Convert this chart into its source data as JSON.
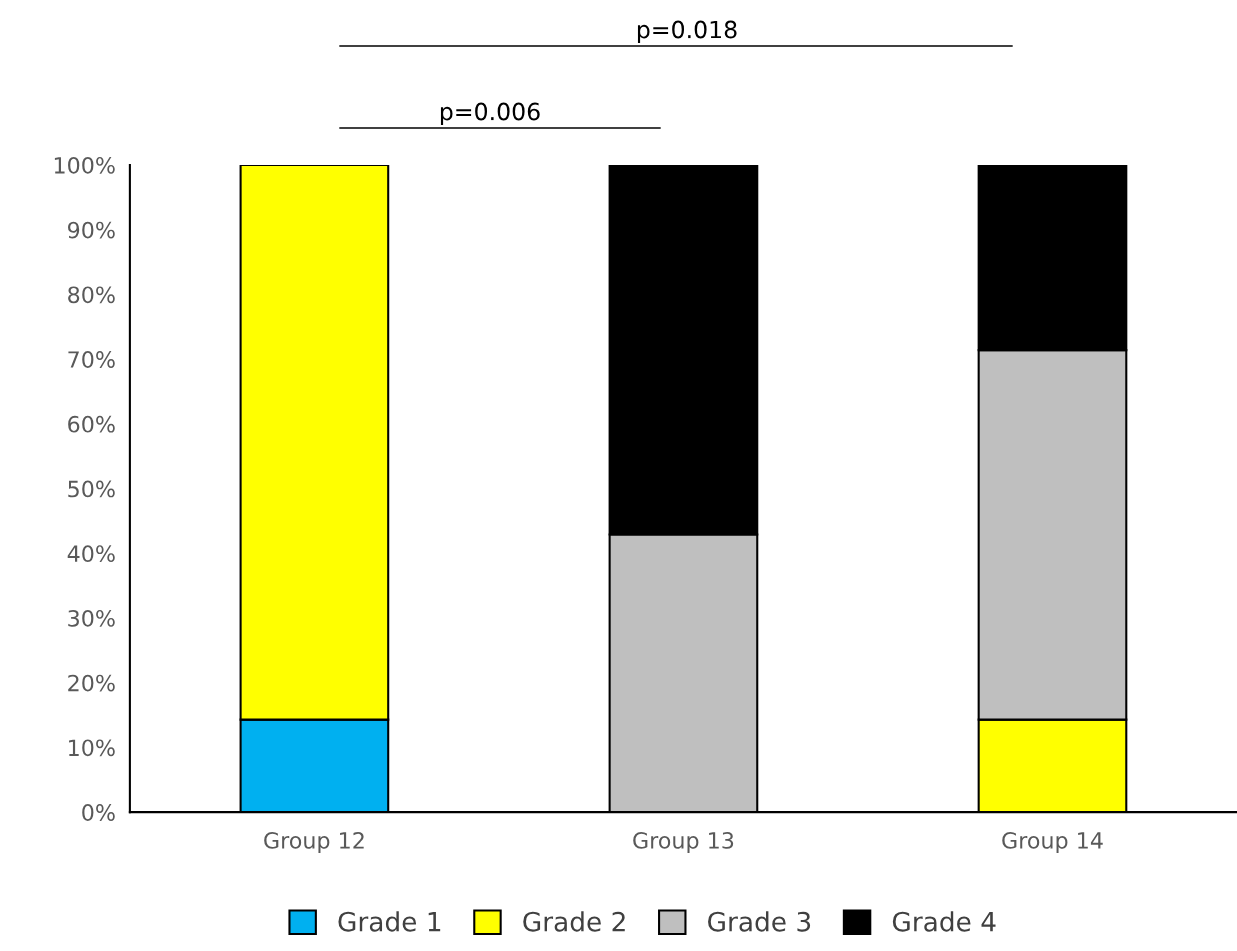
{
  "chart_data": {
    "type": "bar",
    "stacked": true,
    "categories": [
      "Group 12",
      "Group 13",
      "Group 14"
    ],
    "series": [
      {
        "name": "Grade 1",
        "color": "#00b0f0",
        "values": [
          14.3,
          0,
          0
        ]
      },
      {
        "name": "Grade 2",
        "color": "#ffff00",
        "values": [
          85.7,
          0,
          14.3
        ]
      },
      {
        "name": "Grade 3",
        "color": "#bfbfbf",
        "values": [
          0,
          42.9,
          57.1
        ]
      },
      {
        "name": "Grade 4",
        "color": "#000000",
        "values": [
          0,
          57.1,
          28.6
        ]
      }
    ],
    "ylim": [
      0,
      100
    ],
    "yticks": [
      {
        "value": 0,
        "label": "0%"
      },
      {
        "value": 10,
        "label": "10%"
      },
      {
        "value": 20,
        "label": "20%"
      },
      {
        "value": 30,
        "label": "30%"
      },
      {
        "value": 40,
        "label": "40%"
      },
      {
        "value": 50,
        "label": "50%"
      },
      {
        "value": 60,
        "label": "60%"
      },
      {
        "value": 70,
        "label": "70%"
      },
      {
        "value": 80,
        "label": "80%"
      },
      {
        "value": 90,
        "label": "90%"
      },
      {
        "value": 100,
        "label": "100%"
      }
    ],
    "grid": false,
    "legend": "bottom",
    "annotations": [
      "p=0.018",
      "p=0.006"
    ]
  }
}
